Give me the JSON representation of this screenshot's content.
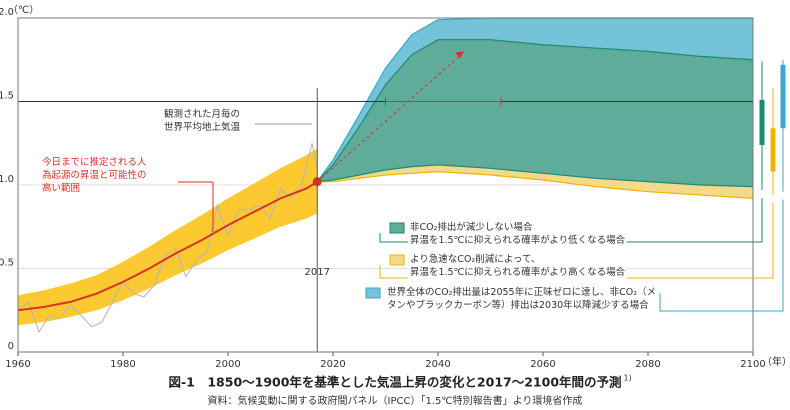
{
  "chart_data": {
    "type": "line",
    "title": "図-1　1850〜1900年を基準とした気温上昇の変化と2017〜2100年間の予測",
    "title_note": "1)",
    "source": "資料：気候変動に関する政府間パネル（IPCC）「1.5℃特別報告書」より環境省作成",
    "y_unit": "（℃）",
    "x_unit": "（年）",
    "xlim": [
      1960,
      2100
    ],
    "xticks": [
      1960,
      1980,
      2000,
      2020,
      2040,
      2060,
      2080,
      2100
    ],
    "ylim": [
      0,
      2
    ],
    "yticks": [
      0,
      0.5,
      {
        "value": 1,
        "label": "1.0"
      },
      1.5,
      {
        "value": 2,
        "label": "2.0"
      }
    ],
    "grid": true,
    "reference_line": 1.5,
    "vline": {
      "value": 2017,
      "label": "2017"
    },
    "range_at_1_5": [
      2030,
      2052
    ],
    "annotations": {
      "observed": "観測された月毎の\n世界平均地上気温",
      "human": "今日までに推定される人\n為起源の昇温と可能性の\n高い範囲"
    },
    "observed": {
      "name": "観測された月毎の世界平均地上気温",
      "color": "#b3b3bd",
      "x": [
        1960,
        1962,
        1964,
        1966,
        1968,
        1970,
        1972,
        1974,
        1976,
        1978,
        1980,
        1982,
        1984,
        1986,
        1988,
        1990,
        1992,
        1994,
        1996,
        1998,
        2000,
        2002,
        2004,
        2006,
        2008,
        2010,
        2012,
        2014,
        2016,
        2017
      ],
      "values": [
        0.25,
        0.3,
        0.12,
        0.22,
        0.2,
        0.28,
        0.22,
        0.15,
        0.18,
        0.3,
        0.42,
        0.35,
        0.33,
        0.4,
        0.58,
        0.62,
        0.45,
        0.55,
        0.6,
        0.88,
        0.7,
        0.85,
        0.85,
        0.88,
        0.8,
        0.98,
        0.92,
        1.0,
        1.25,
        1.1
      ]
    },
    "human_induced": {
      "color": "#d9312b",
      "band_color": "#fcc419",
      "x": [
        1960,
        1965,
        1970,
        1975,
        1980,
        1985,
        1990,
        1995,
        2000,
        2005,
        2010,
        2015,
        2017
      ],
      "values": [
        0.25,
        0.27,
        0.3,
        0.35,
        0.42,
        0.5,
        0.59,
        0.67,
        0.76,
        0.84,
        0.92,
        0.98,
        1.02
      ],
      "low": [
        0.16,
        0.18,
        0.21,
        0.25,
        0.31,
        0.38,
        0.46,
        0.53,
        0.61,
        0.68,
        0.75,
        0.8,
        0.83
      ],
      "high": [
        0.34,
        0.37,
        0.41,
        0.46,
        0.54,
        0.63,
        0.73,
        0.82,
        0.92,
        1.01,
        1.1,
        1.18,
        1.22
      ]
    },
    "projections": {
      "x": [
        2017,
        2020,
        2025,
        2030,
        2035,
        2040,
        2050,
        2060,
        2070,
        2080,
        2090,
        2100
      ],
      "series": [
        {
          "name": "世界全体のCO₂排出量は2055年に正味ゼロに達し、非CO₂（メ\nタンやブラックカーボン等）排出は2030年以降減少する場合",
          "color": "#75c3d9",
          "high": [
            1.02,
            1.15,
            1.42,
            1.7,
            1.9,
            1.99,
            2.0,
            2.0,
            2.0,
            2.0,
            2.0,
            2.0
          ],
          "low": [
            1.02,
            1.04,
            1.08,
            1.11,
            1.13,
            1.14,
            1.13,
            1.1,
            1.07,
            1.05,
            1.03,
            1.02
          ],
          "bar": [
            0.96,
            1.34,
            1.72,
            1.75
          ],
          "bar_color": "#3aa9c9"
        },
        {
          "name": "より急速なCO₂削減によって、\n昇温を1.5℃に抑えられる確率がより高くなる場合",
          "color": "#f3d98a",
          "high": [
            1.02,
            1.1,
            1.3,
            1.52,
            1.68,
            1.77,
            1.76,
            1.7,
            1.66,
            1.62,
            1.58,
            1.55
          ],
          "low": [
            1.02,
            1.02,
            1.04,
            1.06,
            1.07,
            1.08,
            1.06,
            1.03,
            0.99,
            0.96,
            0.94,
            0.92
          ],
          "bar": [
            0.94,
            1.08,
            1.34,
            1.58
          ],
          "bar_color": "#f0b400"
        },
        {
          "name": "非CO₂排出が減少しない場合\n昇温を1.5℃に抑えられる確率がより低くなる場合",
          "color": "#5fac9b",
          "high": [
            1.02,
            1.12,
            1.35,
            1.6,
            1.78,
            1.87,
            1.87,
            1.84,
            1.82,
            1.8,
            1.77,
            1.75
          ],
          "low": [
            1.02,
            1.03,
            1.06,
            1.09,
            1.11,
            1.12,
            1.1,
            1.07,
            1.04,
            1.02,
            1.0,
            0.99
          ],
          "bar": [
            0.97,
            1.24,
            1.51,
            1.74
          ],
          "bar_color": "#1a8a73"
        }
      ]
    }
  }
}
